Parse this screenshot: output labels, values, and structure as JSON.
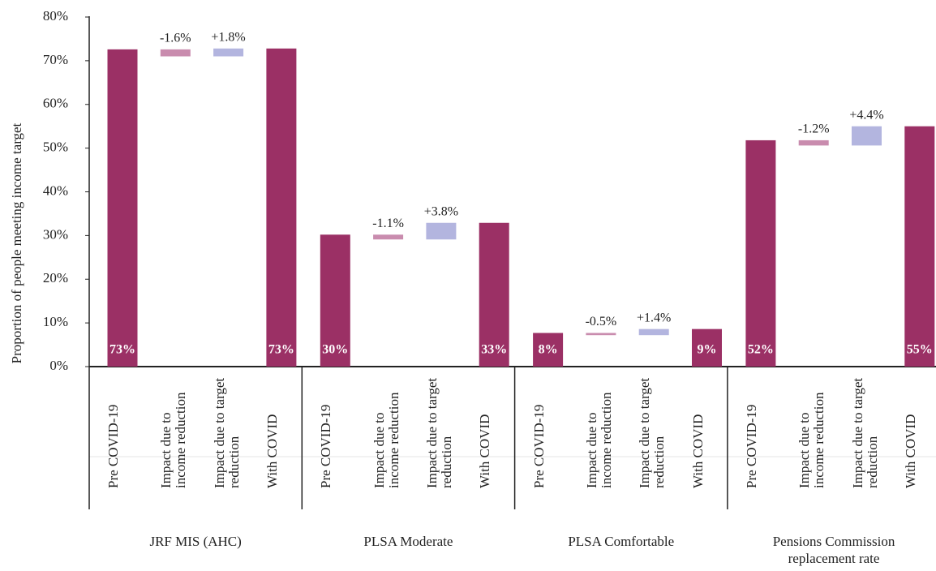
{
  "chart_data": {
    "type": "waterfall",
    "y_label": "Proportion of people meeting income target",
    "categories": [
      "Pre COVID-19",
      "Impact due to income reduction",
      "Impact due to target reduction",
      "With COVID"
    ],
    "colors": [
      "#9b3065",
      "#c98cae",
      "#b3b5df",
      "#9b3065"
    ],
    "groups": [
      {
        "name": "JRF MIS (AHC)",
        "values": [
          72.6,
          -1.6,
          1.8,
          72.8
        ],
        "value_labels": [
          "73%",
          "-1.6%",
          "+1.8%",
          "73%"
        ]
      },
      {
        "name": "PLSA Moderate",
        "values": [
          30.2,
          -1.1,
          3.8,
          32.9
        ],
        "value_labels": [
          "30%",
          "-1.1%",
          "+3.8%",
          "33%"
        ]
      },
      {
        "name": "PLSA Comfortable",
        "values": [
          7.7,
          -0.5,
          1.4,
          8.6
        ],
        "value_labels": [
          "8%",
          "-0.5%",
          "+1.4%",
          "9%"
        ]
      },
      {
        "name": "Pensions Commission replacement rate",
        "values": [
          51.8,
          -1.2,
          4.4,
          55.0
        ],
        "value_labels": [
          "52%",
          "-1.2%",
          "+4.4%",
          "55%"
        ]
      }
    ],
    "ylim": [
      0,
      80
    ],
    "yticks": [
      {
        "value": 0,
        "label": "0%"
      },
      {
        "value": 10,
        "label": "10%"
      },
      {
        "value": 20,
        "label": "20%"
      },
      {
        "value": 30,
        "label": "30%"
      },
      {
        "value": 40,
        "label": "40%"
      },
      {
        "value": 50,
        "label": "50%"
      },
      {
        "value": 60,
        "label": "60%"
      },
      {
        "value": 70,
        "label": "70%"
      },
      {
        "value": 80,
        "label": "80%"
      }
    ],
    "grid": false
  }
}
